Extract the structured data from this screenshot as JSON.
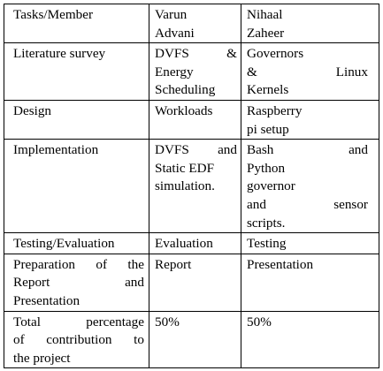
{
  "table": {
    "header": {
      "task": "Tasks/Member",
      "member1": [
        "Varun",
        "Advani"
      ],
      "member2": [
        "Nihaal",
        "Zaheer"
      ]
    },
    "rows": [
      {
        "task": [
          "Literature survey"
        ],
        "member1": [
          [
            "DVFS",
            "&"
          ],
          [
            "Energy"
          ],
          [
            "Scheduling"
          ]
        ],
        "member2": [
          [
            "Governors"
          ],
          [
            "&",
            "Linux"
          ],
          [
            "Kernels"
          ]
        ]
      },
      {
        "task": [
          "Design"
        ],
        "member1": [
          [
            "Workloads"
          ]
        ],
        "member2": [
          [
            "Raspberry"
          ],
          [
            "pi setup"
          ]
        ]
      },
      {
        "task": [
          "Implementation"
        ],
        "member1": [
          [
            "DVFS",
            "and"
          ],
          [
            "Static EDF"
          ],
          [
            "simulation."
          ]
        ],
        "member2": [
          [
            "Bash",
            "and"
          ],
          [
            "Python"
          ],
          [
            "governor"
          ],
          [
            "and",
            "sensor"
          ],
          [
            "scripts."
          ]
        ]
      },
      {
        "task": [
          "Testing/Evaluation"
        ],
        "member1": [
          [
            "Evaluation"
          ]
        ],
        "member2": [
          [
            "Testing"
          ]
        ]
      },
      {
        "task": [
          [
            "Preparation",
            "of",
            "the"
          ],
          [
            "Report",
            "and"
          ],
          [
            "Presentation"
          ]
        ],
        "member1": [
          [
            "Report"
          ]
        ],
        "member2": [
          [
            "Presentation"
          ]
        ]
      },
      {
        "task": [
          [
            "Total",
            "percentage"
          ],
          [
            "of",
            "contribution",
            "to"
          ],
          [
            "the project"
          ]
        ],
        "member1": [
          [
            "50%"
          ]
        ],
        "member2": [
          [
            "50%"
          ]
        ]
      }
    ]
  }
}
